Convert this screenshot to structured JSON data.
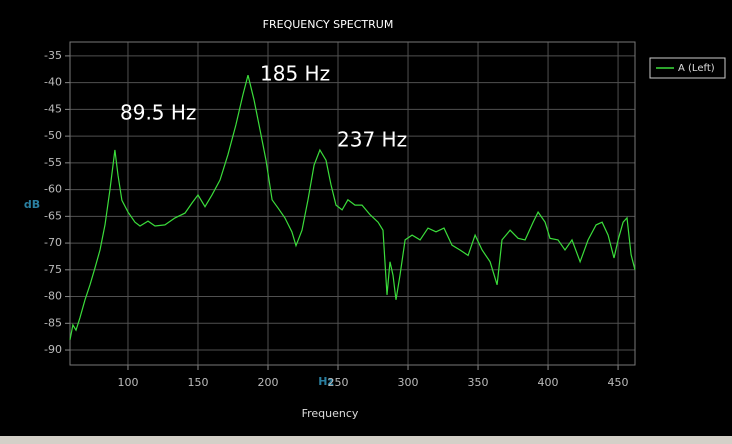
{
  "chart_data": {
    "type": "line",
    "title": "FREQUENCY SPECTRUM",
    "x_label": "Frequency",
    "x_unit_label": "Hz",
    "y_label": "dB",
    "annotations": [
      "89.5 Hz",
      "185 Hz",
      "237 Hz"
    ],
    "xlim": [
      58.6,
      462.1
    ],
    "ylim": [
      -92.8,
      -32.4
    ],
    "xticks": [
      100,
      150,
      200,
      250,
      300,
      350,
      400,
      450
    ],
    "yticks": [
      -90,
      -85,
      -80,
      -75,
      -70,
      -65,
      -60,
      -55,
      -50,
      -45,
      -40,
      -35
    ],
    "grid": true,
    "legend": "right",
    "x": [
      58.6,
      60.7,
      62.9,
      65.7,
      69.3,
      72.9,
      76.4,
      80,
      83.6,
      87.1,
      90.7,
      92.9,
      95.7,
      100,
      105,
      108.6,
      114.3,
      119.3,
      126.4,
      133.6,
      140.7,
      145.7,
      150,
      155,
      160,
      165.7,
      171.4,
      177.1,
      182.1,
      185.7,
      190,
      194.3,
      198.6,
      202.9,
      207.1,
      212.1,
      217.1,
      220,
      224.3,
      228.6,
      232.9,
      237.1,
      241.4,
      245,
      248.6,
      252.9,
      257.1,
      262.1,
      267.1,
      272.9,
      278.6,
      282.1,
      285,
      287.1,
      289.3,
      291.4,
      294.3,
      297.9,
      302.9,
      308.6,
      314.3,
      320,
      325.7,
      331.4,
      337.1,
      342.9,
      347.9,
      352.9,
      358.6,
      363.6,
      367.1,
      372.9,
      378.6,
      383.6,
      389.3,
      392.9,
      397.9,
      401.4,
      407.1,
      412.1,
      417.1,
      422.9,
      428.6,
      434.3,
      438.6,
      442.9,
      447.1,
      450,
      453.6,
      456.4,
      459.3,
      462.1
    ],
    "series": [
      {
        "name": "A (Left)",
        "color": "#3bdc3b",
        "values": [
          -88.1,
          -85.3,
          -86.3,
          -84.0,
          -80.6,
          -77.8,
          -74.7,
          -71.3,
          -66.6,
          -60.1,
          -52.6,
          -57.3,
          -62.0,
          -64.2,
          -66.1,
          -66.8,
          -65.9,
          -66.8,
          -66.6,
          -65.3,
          -64.4,
          -62.5,
          -61.0,
          -63.2,
          -61.0,
          -58.2,
          -53.5,
          -47.9,
          -42.3,
          -38.6,
          -43.2,
          -48.8,
          -54.5,
          -61.9,
          -63.4,
          -65.3,
          -67.9,
          -70.5,
          -67.6,
          -61.9,
          -55.4,
          -52.6,
          -54.5,
          -59.1,
          -62.9,
          -63.8,
          -61.9,
          -62.9,
          -62.9,
          -64.7,
          -66.1,
          -67.6,
          -79.7,
          -73.5,
          -76.0,
          -80.6,
          -76.0,
          -69.4,
          -68.5,
          -69.4,
          -67.2,
          -67.9,
          -67.2,
          -70.4,
          -71.3,
          -72.3,
          -68.5,
          -71.3,
          -73.5,
          -77.8,
          -69.4,
          -67.6,
          -69.1,
          -69.4,
          -66.1,
          -64.2,
          -66.1,
          -69.1,
          -69.4,
          -71.3,
          -69.4,
          -73.5,
          -69.4,
          -66.6,
          -66.1,
          -68.5,
          -72.8,
          -69.4,
          -66.1,
          -65.3,
          -72.2,
          -75.0
        ]
      }
    ]
  }
}
